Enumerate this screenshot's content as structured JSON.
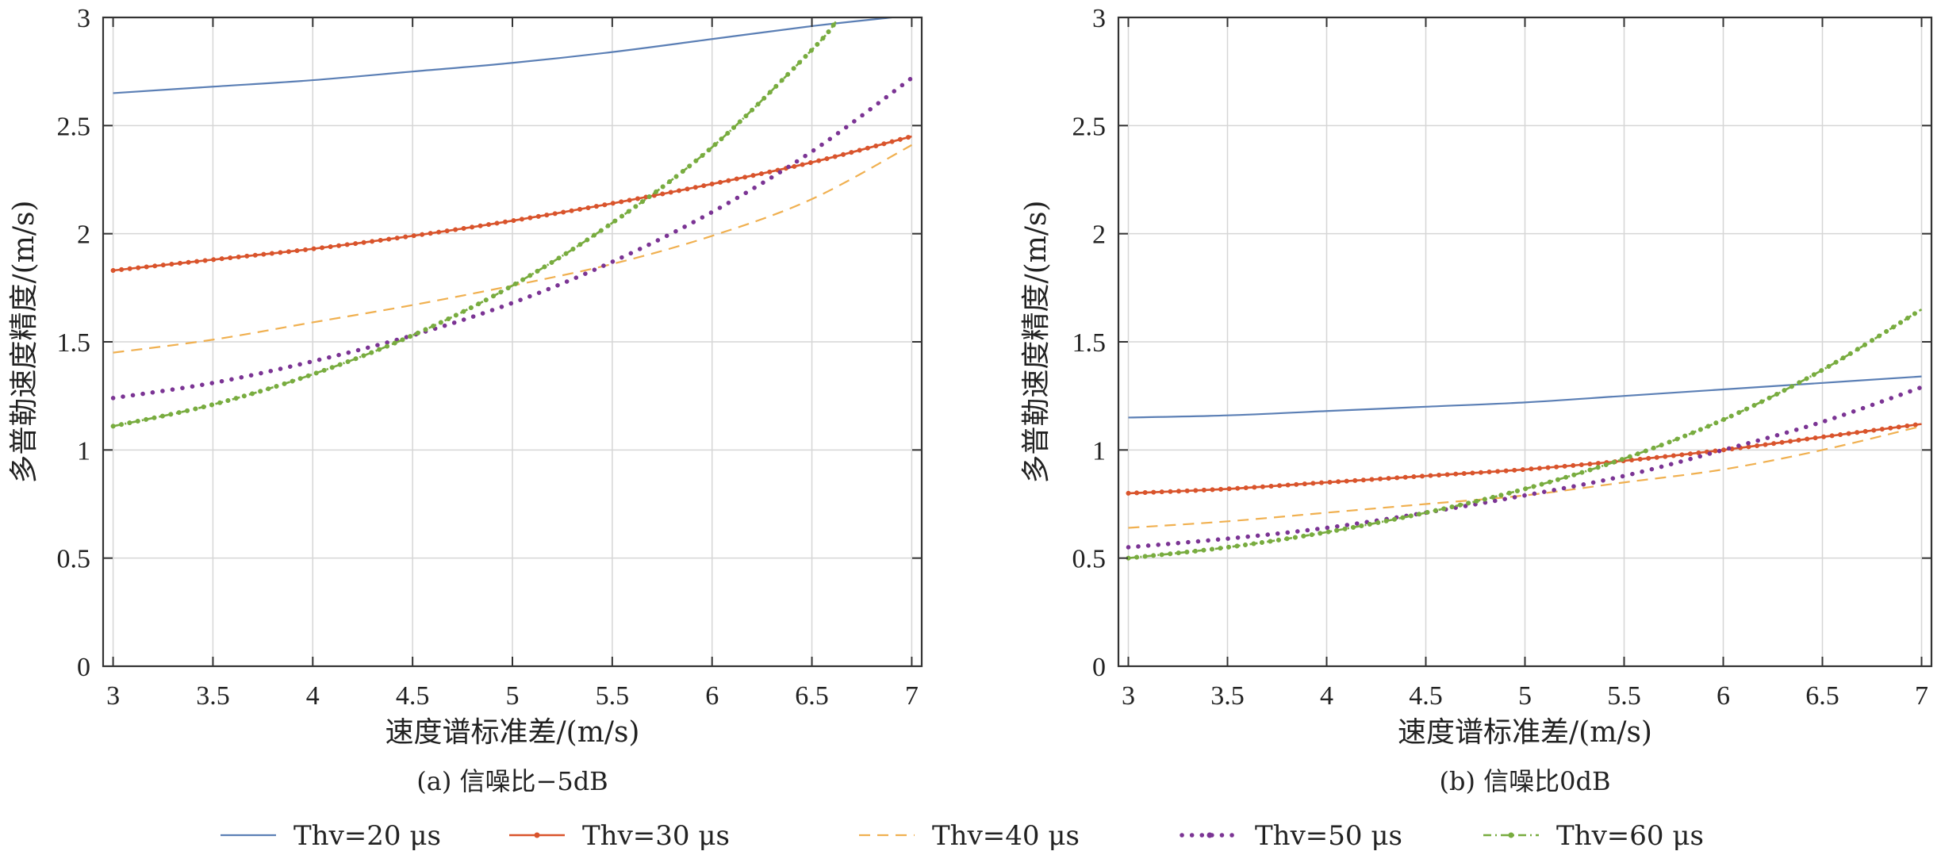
{
  "legend": [
    {
      "label": "Thv=20 μs",
      "color": "#5b7fb5",
      "style": "solid"
    },
    {
      "label": "Thv=30 μs",
      "color": "#d9542c",
      "style": "solid-dotted"
    },
    {
      "label": "Thv=40 μs",
      "color": "#f0b050",
      "style": "dashed"
    },
    {
      "label": "Thv=50 μs",
      "color": "#7b3494",
      "style": "dotted"
    },
    {
      "label": "Thv=60 μs",
      "color": "#78ac3f",
      "style": "dash-dot"
    }
  ],
  "chart_data": [
    {
      "type": "line",
      "caption": "(a) 信噪比−5dB",
      "xlabel": "速度谱标准差/(m/s)",
      "ylabel": "多普勒速度精度/(m/s)",
      "xlim": [
        2.95,
        7.05
      ],
      "ylim": [
        0,
        3
      ],
      "xticks": [
        3,
        3.5,
        4,
        4.5,
        5,
        5.5,
        6,
        6.5,
        7
      ],
      "yticks": [
        0,
        0.5,
        1,
        1.5,
        2,
        2.5,
        3
      ],
      "grid": true,
      "series": [
        {
          "name": "Thv=20 μs",
          "x": [
            3,
            3.5,
            4,
            4.5,
            5,
            5.5,
            6,
            6.5,
            6.9
          ],
          "y": [
            2.65,
            2.68,
            2.71,
            2.75,
            2.79,
            2.84,
            2.9,
            2.96,
            3.0
          ]
        },
        {
          "name": "Thv=30 μs",
          "x": [
            3,
            3.5,
            4,
            4.5,
            5,
            5.5,
            6,
            6.5,
            7
          ],
          "y": [
            1.83,
            1.88,
            1.93,
            1.99,
            2.06,
            2.14,
            2.23,
            2.33,
            2.45
          ]
        },
        {
          "name": "Thv=40 μs",
          "x": [
            3,
            3.5,
            4,
            4.5,
            5,
            5.5,
            6,
            6.5,
            7
          ],
          "y": [
            1.45,
            1.51,
            1.59,
            1.67,
            1.76,
            1.86,
            1.99,
            2.16,
            2.41
          ]
        },
        {
          "name": "Thv=50 μs",
          "x": [
            3,
            3.5,
            4,
            4.5,
            5,
            5.5,
            6,
            6.5,
            7
          ],
          "y": [
            1.24,
            1.31,
            1.41,
            1.53,
            1.68,
            1.87,
            2.1,
            2.38,
            2.72
          ]
        },
        {
          "name": "Thv=60 μs",
          "x": [
            3,
            3.5,
            4,
            4.5,
            5,
            5.5,
            6,
            6.5,
            6.62
          ],
          "y": [
            1.11,
            1.21,
            1.35,
            1.53,
            1.76,
            2.05,
            2.4,
            2.85,
            2.98
          ]
        }
      ]
    },
    {
      "type": "line",
      "caption": "(b) 信噪比0dB",
      "xlabel": "速度谱标准差/(m/s)",
      "ylabel": "多普勒速度精度/(m/s)",
      "xlim": [
        2.95,
        7.05
      ],
      "ylim": [
        0,
        3
      ],
      "xticks": [
        3,
        3.5,
        4,
        4.5,
        5,
        5.5,
        6,
        6.5,
        7
      ],
      "yticks": [
        0,
        0.5,
        1,
        1.5,
        2,
        2.5,
        3
      ],
      "grid": true,
      "series": [
        {
          "name": "Thv=20 μs",
          "x": [
            3,
            3.5,
            4,
            4.5,
            5,
            5.5,
            6,
            6.5,
            7
          ],
          "y": [
            1.15,
            1.16,
            1.18,
            1.2,
            1.22,
            1.25,
            1.28,
            1.31,
            1.34
          ]
        },
        {
          "name": "Thv=30 μs",
          "x": [
            3,
            3.5,
            4,
            4.5,
            5,
            5.5,
            6,
            6.5,
            7
          ],
          "y": [
            0.8,
            0.82,
            0.85,
            0.88,
            0.91,
            0.95,
            1.0,
            1.06,
            1.12
          ]
        },
        {
          "name": "Thv=40 μs",
          "x": [
            3,
            3.5,
            4,
            4.5,
            5,
            5.5,
            6,
            6.5,
            7
          ],
          "y": [
            0.64,
            0.67,
            0.71,
            0.75,
            0.79,
            0.85,
            0.91,
            1.0,
            1.11
          ]
        },
        {
          "name": "Thv=50 μs",
          "x": [
            3,
            3.5,
            4,
            4.5,
            5,
            5.5,
            6,
            6.5,
            7
          ],
          "y": [
            0.55,
            0.59,
            0.64,
            0.71,
            0.79,
            0.88,
            1.0,
            1.13,
            1.29
          ]
        },
        {
          "name": "Thv=60 μs",
          "x": [
            3,
            3.5,
            4,
            4.5,
            5,
            5.5,
            6,
            6.5,
            7
          ],
          "y": [
            0.5,
            0.55,
            0.62,
            0.71,
            0.82,
            0.96,
            1.14,
            1.37,
            1.65
          ]
        }
      ]
    }
  ]
}
